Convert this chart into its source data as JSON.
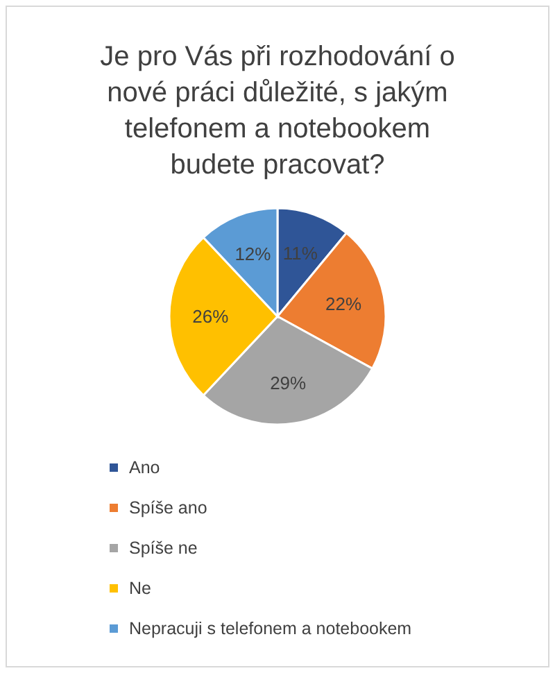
{
  "chart_data": {
    "type": "pie",
    "title": "Je pro Vás při rozhodování o nové práci důležité, s jakým telefonem a notebookem budete pracovat?",
    "categories": [
      "Ano",
      "Spíše ano",
      "Spíše ne",
      "Ne",
      "Nepracuji s telefonem a notebookem"
    ],
    "values": [
      11,
      22,
      29,
      26,
      12
    ],
    "value_labels": [
      "11%",
      "22%",
      "29%",
      "26%",
      "12%"
    ],
    "colors": [
      "#2f5597",
      "#ed7d31",
      "#a5a5a5",
      "#ffc000",
      "#5b9bd5"
    ],
    "legend": "bottom"
  }
}
